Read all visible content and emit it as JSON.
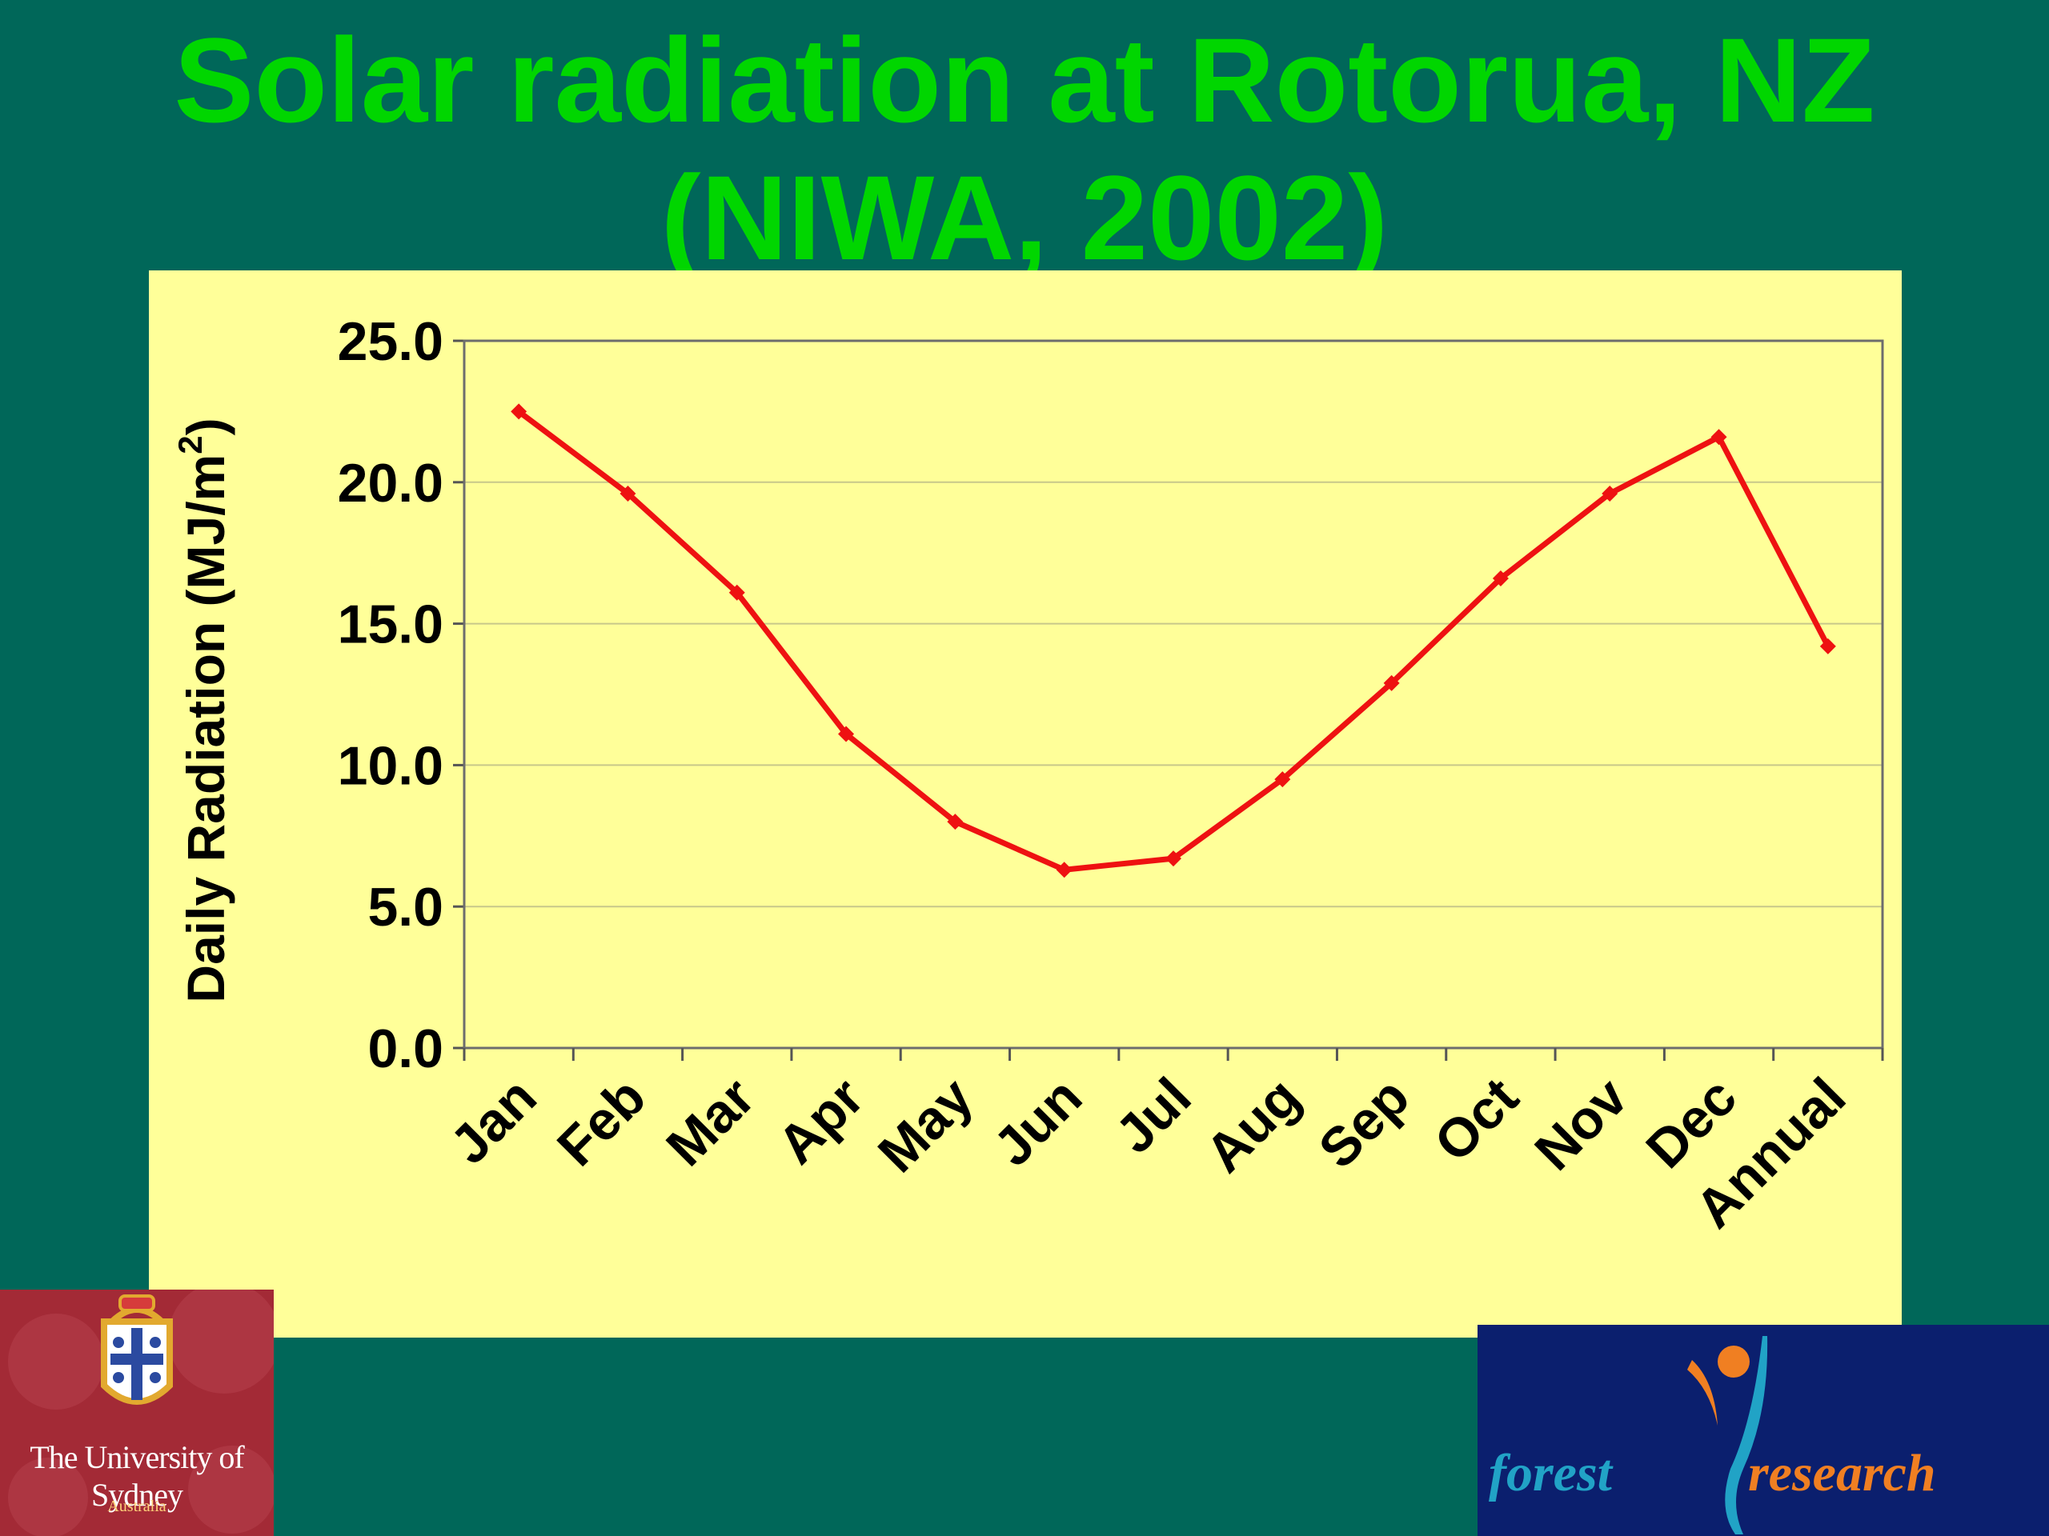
{
  "slide": {
    "title_line1": "Solar radiation at Rotorua, NZ",
    "title_line2": "(NIWA, 2002)"
  },
  "chart_data": {
    "type": "line",
    "categories": [
      "Jan",
      "Feb",
      "Mar",
      "Apr",
      "May",
      "Jun",
      "Jul",
      "Aug",
      "Sep",
      "Oct",
      "Nov",
      "Dec",
      "Annual"
    ],
    "series": [
      {
        "values": [
          22.5,
          19.6,
          16.1,
          11.1,
          8.0,
          6.3,
          6.7,
          9.5,
          12.9,
          16.6,
          19.6,
          21.6,
          14.2
        ],
        "color": "#ee1111"
      }
    ],
    "ylabel": "Daily Radiation (MJ/m",
    "ylabel_sup": "2",
    "ylabel_close": ")",
    "ylim": [
      0,
      25
    ],
    "yticks": [
      0,
      5,
      10,
      15,
      20,
      25
    ],
    "ytick_labels": [
      "0.0",
      "5.0",
      "10.0",
      "15.0",
      "20.0",
      "25.0"
    ],
    "grid": true,
    "plot_background": "#ffff99",
    "gridline_color": "#c8c88a"
  },
  "logos": {
    "left_name": "The University of Sydney",
    "left_sub": "Australia",
    "right_word1": "forest",
    "right_word2": "research"
  }
}
